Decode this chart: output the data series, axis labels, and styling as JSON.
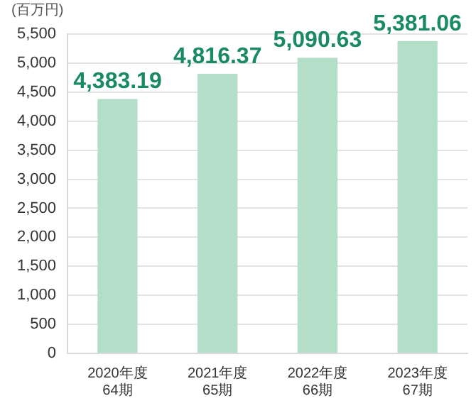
{
  "chart_data": {
    "type": "bar",
    "ylabel": "(百万円)",
    "categories": [
      "2020年度\n64期",
      "2021年度\n65期",
      "2022年度\n66期",
      "2023年度\n67期"
    ],
    "values": [
      4383.19,
      4816.37,
      5090.63,
      5381.06
    ],
    "value_labels": [
      "4,383.19",
      "4,816.37",
      "5,090.63",
      "5,381.06"
    ],
    "color": "#b3dfc9",
    "ylim": [
      0,
      5500
    ],
    "yticks": [
      0,
      500,
      {
        "value": 1000,
        "label": "1,000"
      },
      {
        "value": 1500,
        "label": "1,500"
      },
      {
        "value": 2000,
        "label": "2,000"
      },
      {
        "value": 2500,
        "label": "2,500"
      },
      {
        "value": 3000,
        "label": "3,000"
      },
      {
        "value": 3500,
        "label": "3,500"
      },
      {
        "value": 4000,
        "label": "4,000"
      },
      {
        "value": 4500,
        "label": "4,500"
      },
      {
        "value": 5000,
        "label": "5,000"
      },
      {
        "value": 5500,
        "label": "5,500"
      }
    ],
    "grid": "y",
    "legend": false
  }
}
